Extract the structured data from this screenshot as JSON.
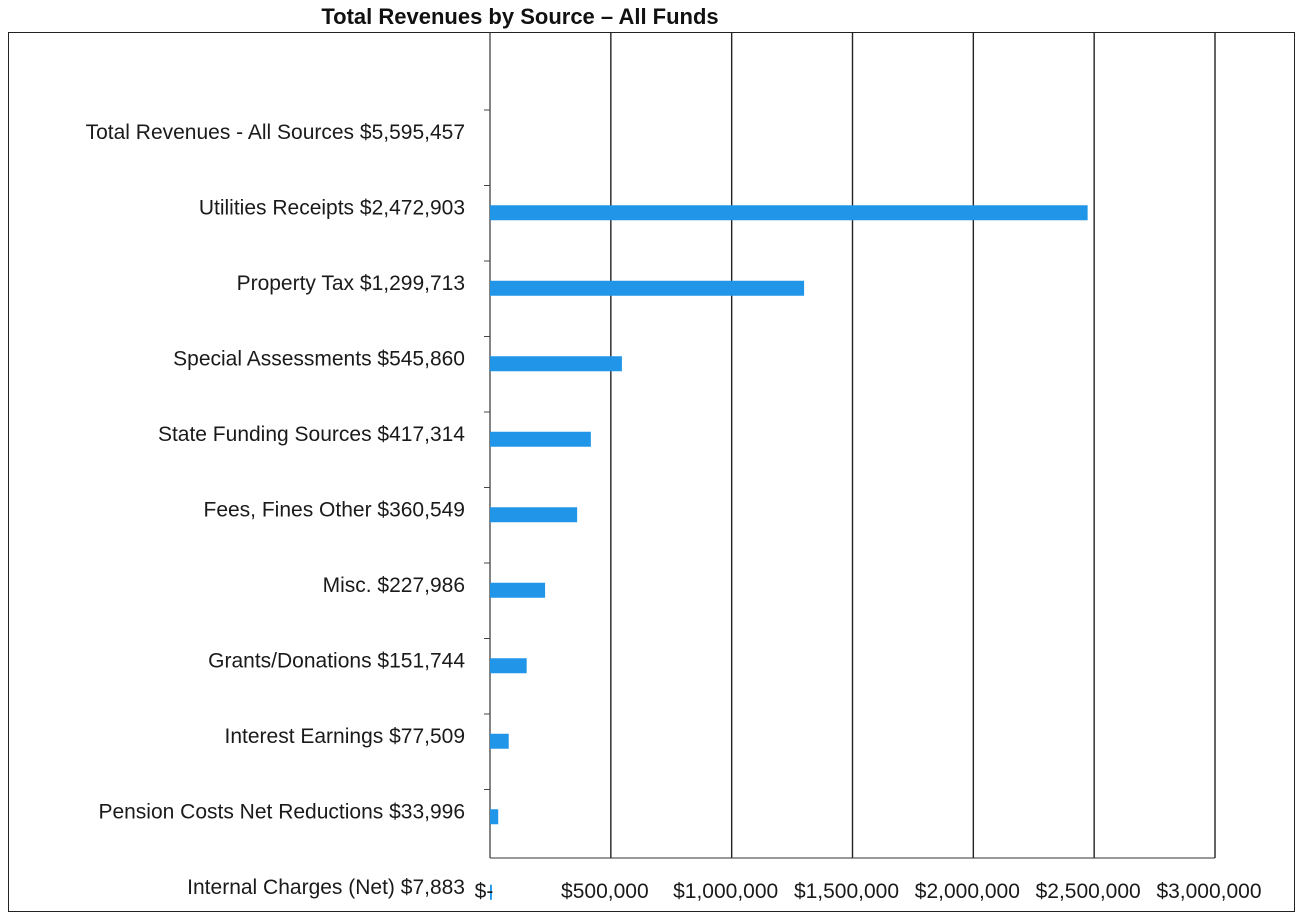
{
  "chart_data": {
    "type": "bar",
    "orientation": "horizontal",
    "title": "Total Revenues by Source – All Funds",
    "xlabel": "",
    "ylabel": "",
    "xlim": [
      0,
      3000000
    ],
    "grid": true,
    "bar_color": "#2196e8",
    "categories": [
      "Total Revenues - All Sources  $5,595,457",
      "Utilities Receipts  $2,472,903",
      "Property Tax $1,299,713",
      "Special Assessments  $545,860",
      "State Funding Sources  $417,314",
      "Fees, Fines Other  $360,549",
      "Misc.   $227,986",
      "Grants/Donations   $151,744",
      "Interest Earnings  $77,509",
      "Pension Costs Net Reductions  $33,996",
      "Internal Charges (Net)   $7,883"
    ],
    "values": [
      null,
      2472903,
      1299713,
      545860,
      417314,
      360549,
      227986,
      151744,
      77509,
      33996,
      7883
    ],
    "x_tick_labels": [
      "$-",
      "$500,000",
      "$1,000,000",
      "$1,500,000",
      "$2,000,000",
      "$2,500,000",
      "$3,000,000"
    ],
    "x_tick_values": [
      0,
      500000,
      1000000,
      1500000,
      2000000,
      2500000,
      3000000
    ]
  }
}
